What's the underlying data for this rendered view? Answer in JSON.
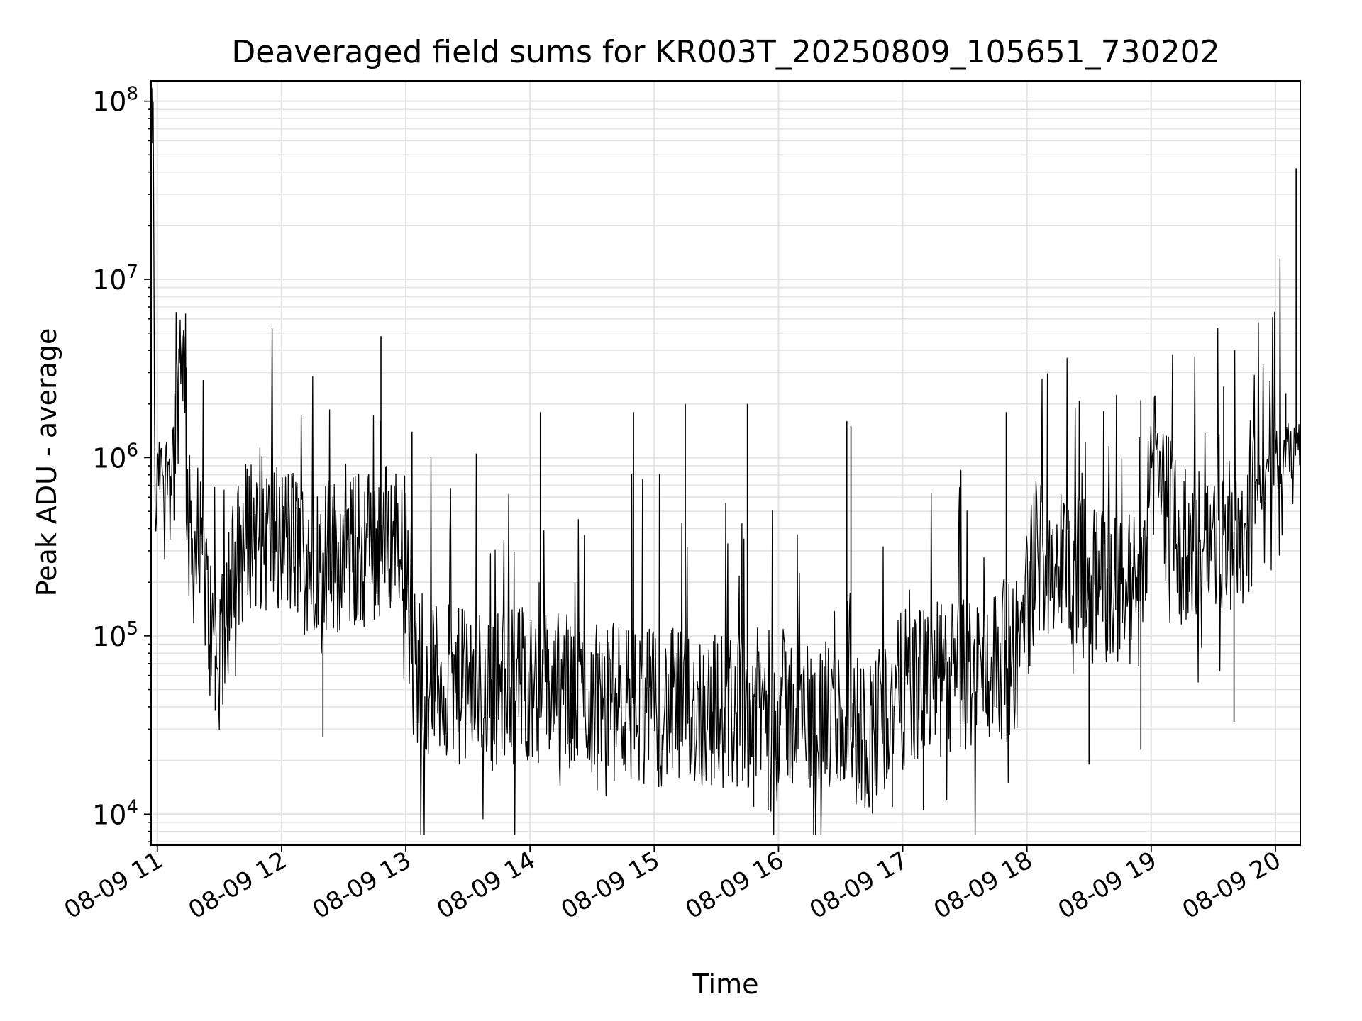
{
  "chart_data": {
    "type": "line",
    "title": "Deaveraged field sums for KR003T_20250809_105651_730202",
    "xlabel": "Time",
    "ylabel": "Peak ADU - average",
    "y_scale": "log",
    "ylim": [
      6700,
      130000000
    ],
    "xlim": [
      "2025-08-09 10:57",
      "2025-08-09 20:12"
    ],
    "grid": true,
    "x_ticks": [
      "2025-08-09 11:00",
      "2025-08-09 12:00",
      "2025-08-09 13:00",
      "2025-08-09 14:00",
      "2025-08-09 15:00",
      "2025-08-09 16:00",
      "2025-08-09 17:00",
      "2025-08-09 18:00",
      "2025-08-09 19:00",
      "2025-08-09 20:00"
    ],
    "x_tick_labels": [
      "08-09 11",
      "08-09 12",
      "08-09 13",
      "08-09 14",
      "08-09 15",
      "08-09 16",
      "08-09 17",
      "08-09 18",
      "08-09 19",
      "08-09 20"
    ],
    "y_ticks": [
      10000,
      100000,
      1000000,
      10000000,
      100000000
    ],
    "y_tick_labels": [
      {
        "base": "10",
        "exp": "4"
      },
      {
        "base": "10",
        "exp": "5"
      },
      {
        "base": "10",
        "exp": "6"
      },
      {
        "base": "10",
        "exp": "7"
      },
      {
        "base": "10",
        "exp": "8"
      }
    ],
    "line_color": "#000000",
    "series": [
      {
        "x": [
          "2025-08-09 10:57",
          "2025-08-09 10:58",
          "2025-08-09 10:59",
          "2025-08-09 11:00",
          "2025-08-09 11:04",
          "2025-08-09 11:08",
          "2025-08-09 11:12",
          "2025-08-09 11:15",
          "2025-08-09 11:18",
          "2025-08-09 11:22",
          "2025-08-09 11:26",
          "2025-08-09 11:30",
          "2025-08-09 11:35",
          "2025-08-09 11:40",
          "2025-08-09 11:45",
          "2025-08-09 11:50",
          "2025-08-09 12:00",
          "2025-08-09 12:15",
          "2025-08-09 12:30",
          "2025-08-09 12:45",
          "2025-08-09 12:59",
          "2025-08-09 13:03",
          "2025-08-09 13:15",
          "2025-08-09 13:30",
          "2025-08-09 14:00",
          "2025-08-09 14:30",
          "2025-08-09 15:00",
          "2025-08-09 15:30",
          "2025-08-09 16:00",
          "2025-08-09 16:30",
          "2025-08-09 16:45",
          "2025-08-09 17:00",
          "2025-08-09 17:30",
          "2025-08-09 17:55",
          "2025-08-09 18:05",
          "2025-08-09 18:30",
          "2025-08-09 18:55",
          "2025-08-09 19:00",
          "2025-08-09 19:15",
          "2025-08-09 19:30",
          "2025-08-09 19:45",
          "2025-08-09 19:55",
          "2025-08-09 20:05",
          "2025-08-09 20:10"
        ],
        "y": [
          80000000,
          75000000,
          300000,
          800000,
          900000,
          1000000,
          6300000,
          400000,
          300000,
          250000,
          100000,
          60000,
          200000,
          300000,
          400000,
          380000,
          350000,
          300000,
          280000,
          330000,
          400000,
          70000,
          55000,
          50000,
          55000,
          45000,
          40000,
          38000,
          40000,
          32000,
          28000,
          50000,
          60000,
          80000,
          300000,
          200000,
          180000,
          1000000,
          300000,
          350000,
          400000,
          800000,
          1100000,
          1200000
        ]
      }
    ],
    "spikes": [
      {
        "x": "2025-08-09 11:12",
        "y": 6300000
      },
      {
        "x": "2025-08-09 11:14",
        "y": 3200000
      },
      {
        "x": "2025-08-09 12:48",
        "y": 4800000
      },
      {
        "x": "2025-08-09 13:03",
        "y": 1400000
      },
      {
        "x": "2025-08-09 14:05",
        "y": 1800000
      },
      {
        "x": "2025-08-09 14:50",
        "y": 1800000
      },
      {
        "x": "2025-08-09 15:15",
        "y": 2000000
      },
      {
        "x": "2025-08-09 15:45",
        "y": 2000000
      },
      {
        "x": "2025-08-09 16:33",
        "y": 1600000
      },
      {
        "x": "2025-08-09 16:35",
        "y": 1500000
      },
      {
        "x": "2025-08-09 17:50",
        "y": 1800000
      },
      {
        "x": "2025-08-09 18:55",
        "y": 2100000
      },
      {
        "x": "2025-08-09 19:35",
        "y": 2500000
      },
      {
        "x": "2025-08-09 20:05",
        "y": 2300000
      },
      {
        "x": "2025-08-09 20:10",
        "y": 42000000
      }
    ],
    "dips": [
      {
        "x": "2025-08-09 11:28",
        "y": 38000
      },
      {
        "x": "2025-08-09 12:20",
        "y": 27000
      },
      {
        "x": "2025-08-09 13:10",
        "y": 23000
      },
      {
        "x": "2025-08-09 14:20",
        "y": 20000
      },
      {
        "x": "2025-08-09 15:48",
        "y": 11000
      },
      {
        "x": "2025-08-09 15:55",
        "y": 10500
      },
      {
        "x": "2025-08-09 16:55",
        "y": 11000
      },
      {
        "x": "2025-08-09 17:10",
        "y": 10500
      },
      {
        "x": "2025-08-09 18:30",
        "y": 19000
      },
      {
        "x": "2025-08-09 18:55",
        "y": 23000
      },
      {
        "x": "2025-08-09 19:40",
        "y": 33000
      }
    ]
  }
}
